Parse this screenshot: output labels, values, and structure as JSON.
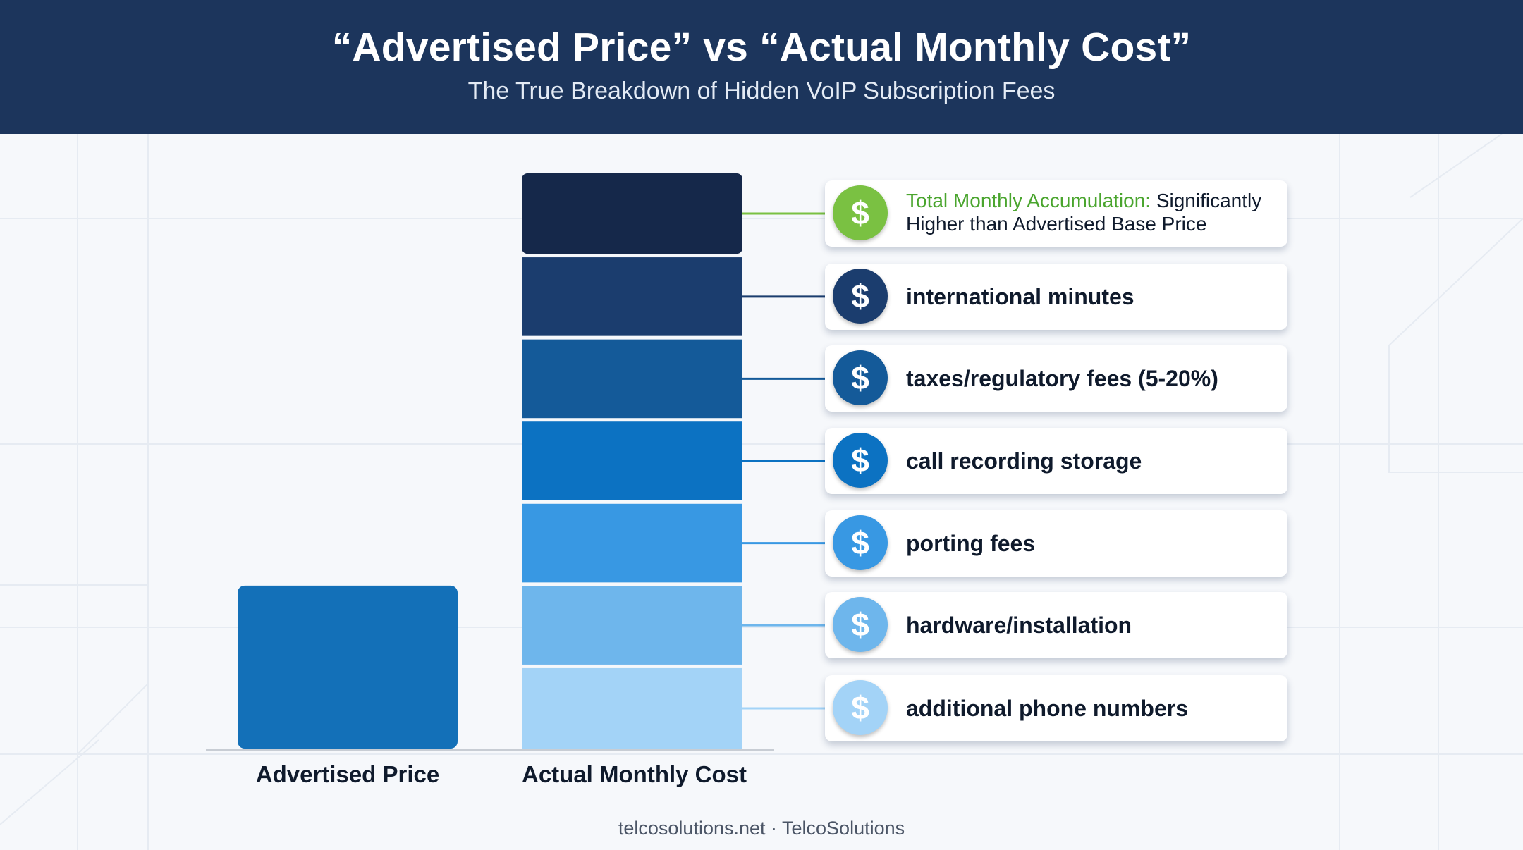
{
  "header": {
    "title": "“Advertised Price” vs “Actual Monthly Cost”",
    "subtitle": "The True Breakdown of Hidden VoIP Subscription Fees",
    "bg_color": "#1c355c"
  },
  "top_callout": {
    "accent_text": "Total Monthly Accumulation:",
    "text": " Significantly Higher than Advertised Base Price",
    "icon": "dollar-icon",
    "icon_color": "#7ac142",
    "accent_color": "#4aa52e"
  },
  "chart_data": {
    "type": "bar",
    "stacked": true,
    "categories": [
      "Advertised Price",
      "Actual Monthly Cost"
    ],
    "series": [
      {
        "name": "additional phone numbers",
        "values": [
          0,
          1
        ],
        "color": "#a3d3f7"
      },
      {
        "name": "hardware/installation",
        "values": [
          0,
          1
        ],
        "color": "#6eb6ec"
      },
      {
        "name": "porting fees",
        "values": [
          0,
          1
        ],
        "color": "#3898e3"
      },
      {
        "name": "call recording storage",
        "values": [
          0,
          1
        ],
        "color": "#0c72c2"
      },
      {
        "name": "taxes/regulatory fees (5-20%)",
        "values": [
          0,
          1
        ],
        "color": "#145a99"
      },
      {
        "name": "international minutes",
        "values": [
          0,
          1
        ],
        "color": "#1b3d6e"
      },
      {
        "name": "",
        "values": [
          0,
          1
        ],
        "color": "#15284a"
      }
    ],
    "advertised": {
      "value": 2,
      "color": "#1370b8"
    },
    "ylim": [
      0,
      7
    ],
    "grid": false,
    "legend_placement": "right"
  },
  "footer": {
    "text": "telcosolutions.net · TelcoSolutions"
  }
}
